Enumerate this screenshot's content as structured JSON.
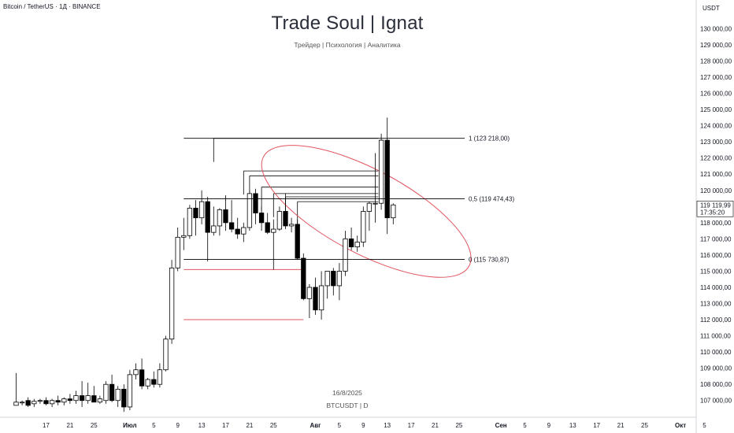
{
  "header": {
    "symbol_line": "Bitcoin / TetherUS · 1Д · BINANCE"
  },
  "watermark": {
    "title": "Trade Soul | Ignat",
    "subtitle": "Трейдер | Психология | Аналитика",
    "date": "16/8/2025",
    "symbol": "BTCUSDT | D"
  },
  "price_axis": {
    "currency": "USDT",
    "last_price": "119 119,99",
    "countdown": "17:35:20"
  },
  "colors": {
    "bull_body": "#ffffff",
    "bear_body": "#000000",
    "candle_outline": "#000000",
    "fib_line": "#000000",
    "ellipse": "#e05560",
    "red_line": "#e05560",
    "price_label_bg": "#ffffff",
    "grid": "#f0f3fa"
  },
  "chart_data": {
    "type": "candlestick",
    "symbol": "BTCUSDT",
    "timeframe": "1D",
    "ylim": [
      106500,
      130800
    ],
    "y_ticks": [
      107000,
      108000,
      109000,
      110000,
      111000,
      112000,
      113000,
      114000,
      115000,
      116000,
      117000,
      118000,
      119000,
      120000,
      121000,
      122000,
      123000,
      124000,
      125000,
      126000,
      127000,
      128000,
      129000,
      130000
    ],
    "y_tick_labels": [
      "107 000,00",
      "108 000,00",
      "109 000,00",
      "110 000,00",
      "111 000,00",
      "112 000,00",
      "113 000,00",
      "114 000,00",
      "115 000,00",
      "116 000,00",
      "117 000,00",
      "118 000,00",
      "119 000,00",
      "120 000,00",
      "121 000,00",
      "122 000,00",
      "123 000,00",
      "124 000,00",
      "125 000,00",
      "126 000,00",
      "127 000,00",
      "128 000,00",
      "129 000,00",
      "130 000,00"
    ],
    "x_ticks": [
      {
        "i": 5,
        "label": "17"
      },
      {
        "i": 9,
        "label": "21"
      },
      {
        "i": 13,
        "label": "25"
      },
      {
        "i": 19,
        "label": "Июл"
      },
      {
        "i": 23,
        "label": "5"
      },
      {
        "i": 27,
        "label": "9"
      },
      {
        "i": 31,
        "label": "13"
      },
      {
        "i": 35,
        "label": "17"
      },
      {
        "i": 39,
        "label": "21"
      },
      {
        "i": 43,
        "label": "25"
      },
      {
        "i": 50,
        "label": "Авг"
      },
      {
        "i": 54,
        "label": "5"
      },
      {
        "i": 58,
        "label": "9"
      },
      {
        "i": 62,
        "label": "13"
      },
      {
        "i": 66,
        "label": "17"
      },
      {
        "i": 70,
        "label": "21"
      },
      {
        "i": 74,
        "label": "25"
      },
      {
        "i": 81,
        "label": "Сен"
      },
      {
        "i": 85,
        "label": "5"
      },
      {
        "i": 89,
        "label": "9"
      },
      {
        "i": 93,
        "label": "13"
      },
      {
        "i": 97,
        "label": "17"
      },
      {
        "i": 101,
        "label": "21"
      },
      {
        "i": 105,
        "label": "25"
      },
      {
        "i": 111,
        "label": "Окт"
      },
      {
        "i": 115,
        "label": "5"
      }
    ],
    "candles": [
      {
        "o": 106700,
        "h": 108700,
        "l": 106700,
        "c": 106900
      },
      {
        "o": 106900,
        "h": 107000,
        "l": 106700,
        "c": 106900
      },
      {
        "o": 107000,
        "h": 107200,
        "l": 106600,
        "c": 106700
      },
      {
        "o": 106800,
        "h": 107100,
        "l": 106600,
        "c": 106950
      },
      {
        "o": 106950,
        "h": 107100,
        "l": 106800,
        "c": 107000
      },
      {
        "o": 107000,
        "h": 107200,
        "l": 106700,
        "c": 106800
      },
      {
        "o": 106800,
        "h": 107100,
        "l": 106600,
        "c": 107000
      },
      {
        "o": 107000,
        "h": 107300,
        "l": 106700,
        "c": 106900
      },
      {
        "o": 106900,
        "h": 107200,
        "l": 106700,
        "c": 107100
      },
      {
        "o": 107100,
        "h": 107400,
        "l": 106800,
        "c": 107000
      },
      {
        "o": 107000,
        "h": 107600,
        "l": 106800,
        "c": 107300
      },
      {
        "o": 107300,
        "h": 108200,
        "l": 106600,
        "c": 107000
      },
      {
        "o": 107000,
        "h": 108100,
        "l": 106800,
        "c": 107300
      },
      {
        "o": 107300,
        "h": 107900,
        "l": 107000,
        "c": 106900
      },
      {
        "o": 106900,
        "h": 107300,
        "l": 106800,
        "c": 107100
      },
      {
        "o": 107000,
        "h": 108200,
        "l": 106800,
        "c": 108000
      },
      {
        "o": 108000,
        "h": 108600,
        "l": 106900,
        "c": 107000
      },
      {
        "o": 107000,
        "h": 107900,
        "l": 106600,
        "c": 107700
      },
      {
        "o": 107700,
        "h": 108000,
        "l": 106300,
        "c": 106600
      },
      {
        "o": 106600,
        "h": 108900,
        "l": 106400,
        "c": 108600
      },
      {
        "o": 108600,
        "h": 109300,
        "l": 108300,
        "c": 108900
      },
      {
        "o": 108900,
        "h": 109600,
        "l": 107700,
        "c": 107900
      },
      {
        "o": 107900,
        "h": 108400,
        "l": 107700,
        "c": 108300
      },
      {
        "o": 108300,
        "h": 108800,
        "l": 107800,
        "c": 108000
      },
      {
        "o": 108000,
        "h": 109300,
        "l": 107800,
        "c": 108900
      },
      {
        "o": 108900,
        "h": 111000,
        "l": 108800,
        "c": 110800
      },
      {
        "o": 110800,
        "h": 115700,
        "l": 110500,
        "c": 115200
      },
      {
        "o": 115200,
        "h": 117700,
        "l": 115000,
        "c": 117100
      },
      {
        "o": 117100,
        "h": 118300,
        "l": 116300,
        "c": 117200
      },
      {
        "o": 117200,
        "h": 119100,
        "l": 117000,
        "c": 118900
      },
      {
        "o": 118900,
        "h": 119400,
        "l": 117200,
        "c": 118300
      },
      {
        "o": 118300,
        "h": 120000,
        "l": 117900,
        "c": 119300
      },
      {
        "o": 119300,
        "h": 119600,
        "l": 115600,
        "c": 117400
      },
      {
        "o": 117400,
        "h": 119000,
        "l": 117200,
        "c": 117800
      },
      {
        "o": 117800,
        "h": 118900,
        "l": 117200,
        "c": 118800
      },
      {
        "o": 118800,
        "h": 119700,
        "l": 117500,
        "c": 118000
      },
      {
        "o": 118000,
        "h": 119400,
        "l": 117400,
        "c": 117600
      },
      {
        "o": 117600,
        "h": 118300,
        "l": 117000,
        "c": 117300
      },
      {
        "o": 117300,
        "h": 118000,
        "l": 116800,
        "c": 117700
      },
      {
        "o": 117700,
        "h": 120000,
        "l": 117500,
        "c": 119800
      },
      {
        "o": 119800,
        "h": 120100,
        "l": 117900,
        "c": 118600
      },
      {
        "o": 118600,
        "h": 119000,
        "l": 117500,
        "c": 118000
      },
      {
        "o": 118000,
        "h": 118600,
        "l": 117300,
        "c": 117400
      },
      {
        "o": 117400,
        "h": 118200,
        "l": 115100,
        "c": 117600
      },
      {
        "o": 117600,
        "h": 119000,
        "l": 117500,
        "c": 118700
      },
      {
        "o": 118700,
        "h": 119800,
        "l": 117600,
        "c": 117800
      },
      {
        "o": 117800,
        "h": 118300,
        "l": 117400,
        "c": 117900
      },
      {
        "o": 117900,
        "h": 118200,
        "l": 115700,
        "c": 115800
      },
      {
        "o": 115800,
        "h": 116100,
        "l": 113200,
        "c": 113300
      },
      {
        "o": 113300,
        "h": 114200,
        "l": 112100,
        "c": 114000
      },
      {
        "o": 114000,
        "h": 114600,
        "l": 112300,
        "c": 112600
      },
      {
        "o": 112600,
        "h": 115000,
        "l": 112000,
        "c": 114100
      },
      {
        "o": 114100,
        "h": 115000,
        "l": 113300,
        "c": 115000
      },
      {
        "o": 115000,
        "h": 115200,
        "l": 113500,
        "c": 114100
      },
      {
        "o": 114100,
        "h": 115500,
        "l": 113200,
        "c": 115000
      },
      {
        "o": 115000,
        "h": 117500,
        "l": 114700,
        "c": 117000
      },
      {
        "o": 117000,
        "h": 117700,
        "l": 116300,
        "c": 116500
      },
      {
        "o": 116500,
        "h": 117200,
        "l": 116200,
        "c": 116800
      },
      {
        "o": 116800,
        "h": 119000,
        "l": 116500,
        "c": 118700
      },
      {
        "o": 118700,
        "h": 119300,
        "l": 117500,
        "c": 119200
      },
      {
        "o": 119200,
        "h": 122300,
        "l": 118000,
        "c": 119200
      },
      {
        "o": 119200,
        "h": 123500,
        "l": 118800,
        "c": 123100
      },
      {
        "o": 123100,
        "h": 124500,
        "l": 117300,
        "c": 118300
      },
      {
        "o": 118300,
        "h": 119200,
        "l": 117900,
        "c": 119100
      }
    ],
    "annotations": {
      "fib_levels": [
        {
          "label": "1 (123 218,00)",
          "price": 123218
        },
        {
          "label": "0,5 (119 474,43)",
          "price": 119474.43
        },
        {
          "label": "0 (115 730,87)",
          "price": 115730.87
        }
      ],
      "resistance_lines_from": [
        {
          "from_i": 33,
          "price": 123218
        },
        {
          "from_i": 38,
          "price": 121200
        },
        {
          "from_i": 39,
          "price": 120900
        },
        {
          "from_i": 41,
          "price": 120200
        },
        {
          "from_i": 43,
          "price": 119800
        },
        {
          "from_i": 45,
          "price": 119600
        },
        {
          "from_i": 47,
          "price": 119300
        }
      ],
      "red_lines": [
        {
          "from_i": 28,
          "to_i": 48,
          "price": 115100
        },
        {
          "from_i": 28,
          "to_i": 48,
          "price": 112000
        }
      ],
      "ellipse": {
        "center_i": 58.5,
        "center_price": 118700,
        "half_width_bars": 7,
        "half_height": 7200,
        "angle_deg": -62
      }
    }
  }
}
